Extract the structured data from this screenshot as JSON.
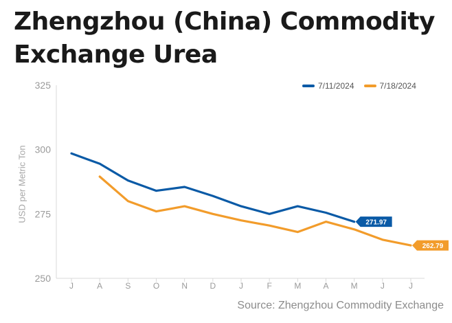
{
  "title_lines": [
    "Zhengzhou (China) Commodity",
    "Exchange Urea"
  ],
  "source": "Source: Zhengzhou Commodity Exchange",
  "colors": {
    "series1": "#0a5aa6",
    "series2": "#f29c2b",
    "axis": "#d9d9d9",
    "tick": "#9a9a9a"
  },
  "chart_data": {
    "type": "line",
    "ylabel": "USD per Metric Ton",
    "xlabel": "",
    "ylim": [
      250,
      325
    ],
    "yticks": [
      250,
      275,
      300,
      325
    ],
    "categories": [
      "J",
      "A",
      "S",
      "O",
      "N",
      "D",
      "J",
      "F",
      "M",
      "A",
      "M",
      "J",
      "J"
    ],
    "grid": false,
    "legend_position": "top-right",
    "series": [
      {
        "name": "7/11/2024",
        "values": [
          298.5,
          294.5,
          288,
          284,
          285.5,
          282,
          278,
          275,
          278,
          275.5,
          271.97,
          null,
          null
        ],
        "end_label": "271.97"
      },
      {
        "name": "7/18/2024",
        "values": [
          null,
          289.5,
          280,
          276,
          278,
          275,
          272.5,
          270.5,
          268,
          272,
          269,
          265,
          262.79
        ],
        "end_label": "262.79"
      }
    ]
  }
}
